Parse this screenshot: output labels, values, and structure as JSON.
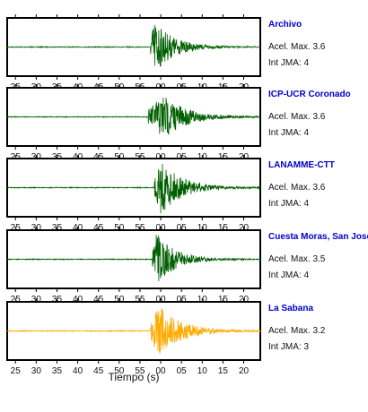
{
  "x_axis_title": "Tiempo (s)",
  "accel_prefix": "Acel. Max.",
  "jma_prefix": "Int JMA:",
  "tick_labels": [
    "25",
    "30",
    "35",
    "40",
    "45",
    "50",
    "55",
    "00",
    "05",
    "10",
    "15",
    "20"
  ],
  "colors": {
    "station_label": "#0000cc",
    "axis": "#000000"
  },
  "stations": [
    {
      "name": "Archivo",
      "accel_max": "3.6",
      "int_jma": "4",
      "color": "#005f00"
    },
    {
      "name": "ICP-UCR Coronado",
      "accel_max": "3.6",
      "int_jma": "4",
      "color": "#005f00"
    },
    {
      "name": "LANAMME-CTT",
      "accel_max": "3.6",
      "int_jma": "4",
      "color": "#005f00"
    },
    {
      "name": "Cuesta Moras, San José",
      "accel_max": "3.5",
      "int_jma": "4",
      "color": "#005f00"
    },
    {
      "name": "La Sabana",
      "accel_max": "3.2",
      "int_jma": "3",
      "color": "#ffaa00"
    }
  ],
  "chart_data": {
    "type": "line",
    "xlabel": "Tiempo (s)",
    "xlim": [
      23,
      84
    ],
    "x_ticks": [
      25,
      30,
      35,
      40,
      45,
      50,
      55,
      60,
      65,
      70,
      75,
      80
    ],
    "series": [
      {
        "name": "Archivo",
        "onset": 57.5,
        "peak_at": 58.5,
        "decay": 4.5,
        "peak_rel": 1.0
      },
      {
        "name": "ICP-UCR Coronado",
        "onset": 57.0,
        "peak_at": 60.5,
        "decay": 5.5,
        "peak_rel": 0.85
      },
      {
        "name": "LANAMME-CTT",
        "onset": 58.5,
        "peak_at": 60.0,
        "decay": 5.0,
        "peak_rel": 1.0
      },
      {
        "name": "Cuesta Moras, San José",
        "onset": 58.0,
        "peak_at": 59.0,
        "decay": 4.5,
        "peak_rel": 0.95
      },
      {
        "name": "La Sabana",
        "onset": 57.5,
        "peak_at": 59.5,
        "decay": 5.5,
        "peak_rel": 0.95
      }
    ]
  }
}
